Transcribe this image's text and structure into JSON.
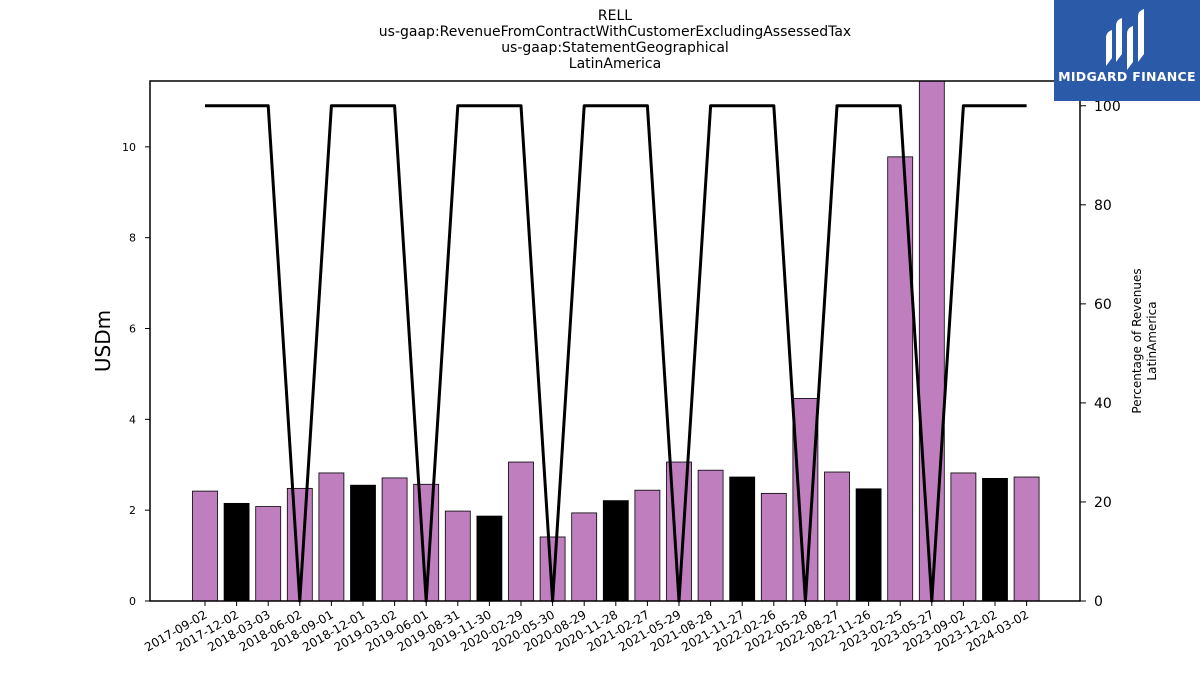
{
  "header": {
    "title_lines": [
      "RELL",
      "us-gaap:RevenueFromContractWithCustomerExcludingAssessedTax",
      "us-gaap:StatementGeographical",
      "LatinAmerica"
    ]
  },
  "logo": {
    "text": "MIDGARD FINANCE"
  },
  "colors": {
    "bar_purple": "#bf7fbf",
    "bar_black": "#000000",
    "line": "#000000",
    "logo_bg": "#2b5aa8"
  },
  "chart_data": {
    "type": "bar",
    "title": "RELL\nus-gaap:RevenueFromContractWithCustomerExcludingAssessedTax\nus-gaap:StatementGeographical\nLatinAmerica",
    "ylabel": "USDm",
    "y2label": [
      "Percentage of Revenues",
      "LatinAmerica"
    ],
    "ylim": [
      0,
      11.45
    ],
    "y2lim": [
      0,
      105
    ],
    "yticks": [
      0,
      2,
      4,
      6,
      8,
      10
    ],
    "y2ticks": [
      0,
      20,
      40,
      60,
      80,
      100
    ],
    "categories": [
      "2017-09-02",
      "2017-12-02",
      "2018-03-03",
      "2018-06-02",
      "2018-09-01",
      "2018-12-01",
      "2019-03-02",
      "2019-06-01",
      "2019-08-31",
      "2019-11-30",
      "2020-02-29",
      "2020-05-30",
      "2020-08-29",
      "2020-11-28",
      "2021-02-27",
      "2021-05-29",
      "2021-08-28",
      "2021-11-27",
      "2022-02-26",
      "2022-05-28",
      "2022-08-27",
      "2022-11-26",
      "2023-02-25",
      "2023-05-27",
      "2023-09-02",
      "2023-12-02",
      "2024-03-02"
    ],
    "series": [
      {
        "values": [
          2.42,
          2.15,
          2.08,
          2.48,
          2.82,
          2.55,
          2.71,
          2.57,
          1.98,
          1.87,
          3.06,
          1.41,
          1.94,
          2.21,
          2.44,
          3.06,
          2.88,
          2.73,
          2.37,
          4.46,
          2.84,
          2.47,
          9.78,
          11.45,
          2.82,
          2.7,
          2.73
        ],
        "bar_colors": [
          "purple",
          "black",
          "purple",
          "purple",
          "purple",
          "black",
          "purple",
          "purple",
          "purple",
          "black",
          "purple",
          "purple",
          "purple",
          "black",
          "purple",
          "purple",
          "purple",
          "black",
          "purple",
          "purple",
          "purple",
          "black",
          "purple",
          "purple",
          "purple",
          "black",
          "purple"
        ]
      },
      {
        "axis": "right",
        "type": "line",
        "values": [
          100,
          100,
          100,
          0,
          100,
          100,
          100,
          0,
          100,
          100,
          100,
          0,
          100,
          100,
          100,
          0,
          100,
          100,
          100,
          0,
          100,
          100,
          100,
          0,
          100,
          100,
          100
        ]
      }
    ],
    "grid": false
  }
}
